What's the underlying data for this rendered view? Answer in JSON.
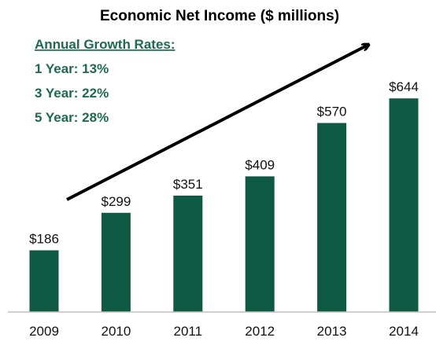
{
  "chart_data": {
    "type": "bar",
    "title": "Economic Net Income ($ millions)",
    "categories": [
      "2009",
      "2010",
      "2011",
      "2012",
      "2013",
      "2014"
    ],
    "values": [
      186,
      299,
      351,
      409,
      570,
      644
    ],
    "data_labels": [
      "$186",
      "$299",
      "$351",
      "$409",
      "$570",
      "$644"
    ],
    "xlabel": "",
    "ylabel": "",
    "ylim": [
      0,
      700
    ],
    "grid": false,
    "bar_color": "#0e5a45",
    "annotation": {
      "heading": "Annual Growth Rates:",
      "items": [
        "1 Year: 13%",
        "3 Year: 22%",
        "5 Year: 28%"
      ],
      "color": "#1c6a4f"
    },
    "trend_arrow": true
  }
}
